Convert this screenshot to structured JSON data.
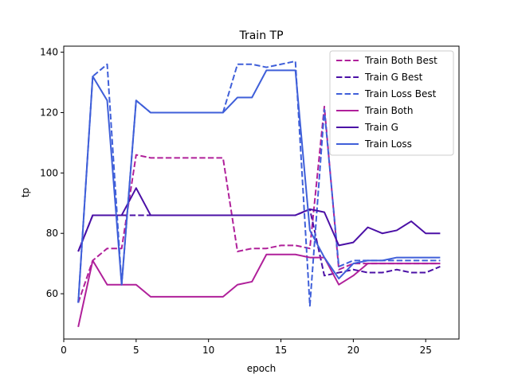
{
  "chart_data": {
    "type": "line",
    "title": "Train TP",
    "xlabel": "epoch",
    "ylabel": "tp",
    "xlim": [
      0,
      27.3
    ],
    "ylim": [
      45,
      142
    ],
    "xticks": [
      0,
      5,
      10,
      15,
      20,
      25
    ],
    "yticks": [
      60,
      80,
      100,
      120,
      140
    ],
    "grid": false,
    "legend_position": "upper-right",
    "x": [
      1,
      2,
      3,
      4,
      5,
      6,
      7,
      8,
      9,
      10,
      11,
      12,
      13,
      14,
      15,
      16,
      17,
      18,
      19,
      20,
      21,
      22,
      23,
      24,
      25,
      26
    ],
    "series": [
      {
        "name": "Train Both Best",
        "color": "#b0209a",
        "dash": true,
        "values": [
          57,
          71,
          75,
          75,
          106,
          105,
          105,
          105,
          105,
          105,
          105,
          74,
          75,
          75,
          76,
          76,
          75,
          122,
          68,
          70,
          70,
          70,
          70,
          70,
          70,
          70
        ]
      },
      {
        "name": "Train G Best",
        "color": "#4b10a6",
        "dash": true,
        "values": [
          74,
          86,
          86,
          86,
          86,
          86,
          86,
          86,
          86,
          86,
          86,
          86,
          86,
          86,
          86,
          86,
          88,
          66,
          67,
          68,
          67,
          67,
          68,
          67,
          67,
          69
        ]
      },
      {
        "name": "Train Loss Best",
        "color": "#3f5fd9",
        "dash": true,
        "values": [
          57,
          132,
          136,
          63,
          124,
          120,
          120,
          120,
          120,
          120,
          120,
          136,
          136,
          135,
          136,
          137,
          56,
          121,
          69,
          71,
          71,
          71,
          71,
          71,
          71,
          71
        ]
      },
      {
        "name": "Train Both",
        "color": "#b0209a",
        "dash": false,
        "values": [
          49,
          71,
          63,
          63,
          63,
          59,
          59,
          59,
          59,
          59,
          59,
          63,
          64,
          73,
          73,
          73,
          72,
          72,
          63,
          66,
          70,
          70,
          70,
          70,
          70,
          70
        ]
      },
      {
        "name": "Train G",
        "color": "#4b10a6",
        "dash": false,
        "values": [
          74,
          86,
          86,
          86,
          95,
          86,
          86,
          86,
          86,
          86,
          86,
          86,
          86,
          86,
          86,
          86,
          88,
          87,
          76,
          77,
          82,
          80,
          81,
          84,
          80,
          80
        ]
      },
      {
        "name": "Train Loss",
        "color": "#3f5fd9",
        "dash": false,
        "values": [
          57,
          132,
          124,
          63,
          124,
          120,
          120,
          120,
          120,
          120,
          120,
          125,
          125,
          134,
          134,
          134,
          81,
          72,
          65,
          70,
          71,
          71,
          72,
          72,
          72,
          72
        ]
      }
    ]
  }
}
